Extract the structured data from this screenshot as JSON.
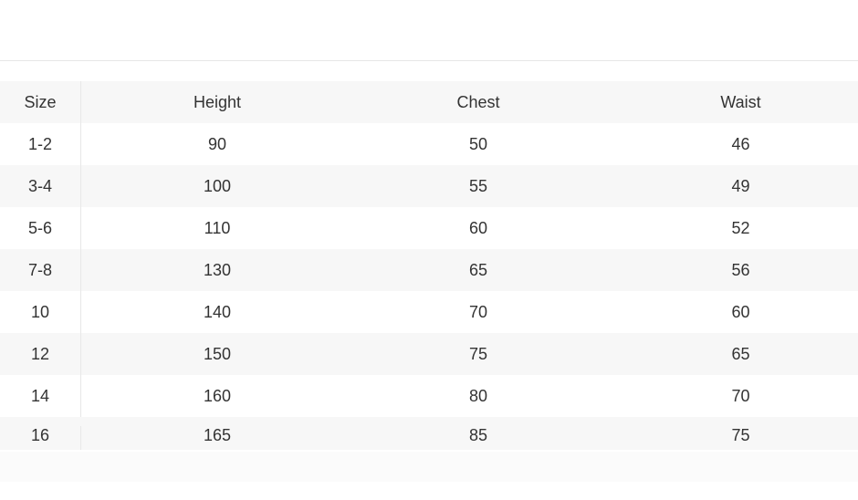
{
  "table": {
    "headers": [
      "Size",
      "Height",
      "Chest",
      "Waist"
    ],
    "rows": [
      [
        "1-2",
        "90",
        "50",
        "46"
      ],
      [
        "3-4",
        "100",
        "55",
        "49"
      ],
      [
        "5-6",
        "110",
        "60",
        "52"
      ],
      [
        "7-8",
        "130",
        "65",
        "56"
      ],
      [
        "10",
        "140",
        "70",
        "60"
      ],
      [
        "12",
        "150",
        "75",
        "65"
      ],
      [
        "14",
        "160",
        "80",
        "70"
      ],
      [
        "16",
        "165",
        "85",
        "75"
      ]
    ]
  }
}
